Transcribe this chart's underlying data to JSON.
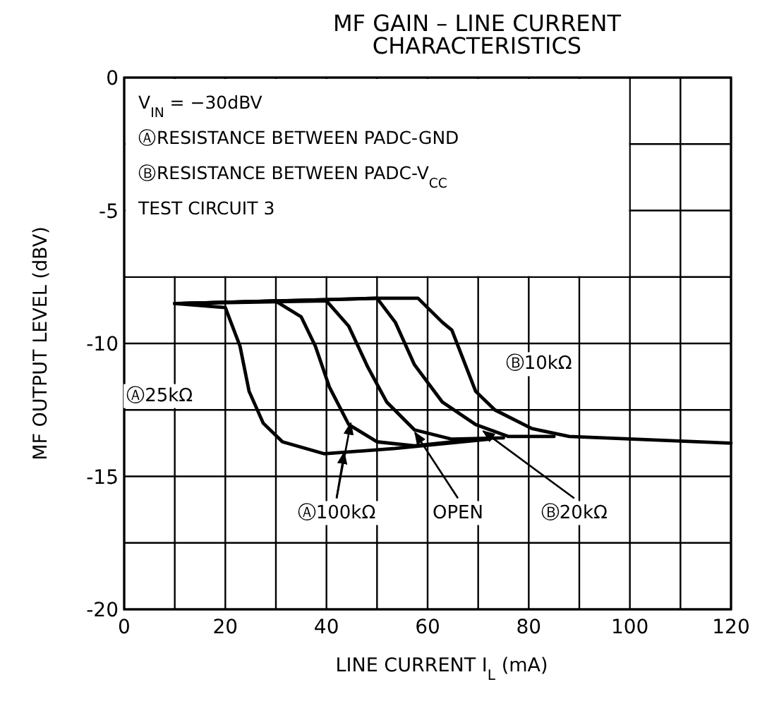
{
  "chart_data": {
    "type": "line",
    "title": "MF GAIN – LINE CURRENT CHARACTERISTICS",
    "xlabel": "LINE CURRENT  I$_{L}$  (mA)",
    "ylabel": "MF OUTPUT LEVEL (dBV)",
    "annotations": [
      "V$_{IN}$ = −30dBV",
      "ⒶRESISTANCE BETWEEN PADC-GND",
      "ⒷRESISTANCE BETWEEN PADC-V$_{CC}$",
      "TEST CIRCUIT 3"
    ],
    "xlim": [
      0,
      120
    ],
    "ylim": [
      -20,
      0
    ],
    "xticks": [
      0,
      {
        "value": 10,
        "label": null
      },
      20,
      {
        "value": 30,
        "label": null
      },
      40,
      {
        "value": 50,
        "label": null
      },
      60,
      {
        "value": 70,
        "label": null
      },
      80,
      {
        "value": 90,
        "label": null
      },
      100,
      {
        "value": 110,
        "label": null
      },
      120
    ],
    "yticks": [
      -20,
      {
        "value": -17.5,
        "label": null
      },
      -15,
      {
        "value": -12.5,
        "label": null
      },
      -10,
      {
        "value": -7.5,
        "label": null
      },
      -5,
      {
        "value": -2.5,
        "label": null
      },
      0
    ],
    "grid": true,
    "legend": false,
    "marker": "none",
    "line_style": "solid",
    "series": [
      {
        "name": "Ⓐ25kΩ",
        "color": "#000000",
        "x": [
          10,
          20,
          22.9,
          24.7,
          27.5,
          31.3,
          39.6,
          53.6,
          72.3
        ],
        "values": [
          -8.5,
          -8.65,
          -10.1,
          -11.8,
          -13.0,
          -13.7,
          -14.15,
          -13.95,
          -13.6
        ]
      },
      {
        "name": "Ⓐ100kΩ",
        "color": "#000000",
        "x": [
          10,
          29.9,
          35,
          37.8,
          40.6,
          44.4,
          50,
          57.4,
          70
        ],
        "values": [
          -8.5,
          -8.4,
          -9.0,
          -10.1,
          -11.65,
          -13.05,
          -13.7,
          -13.85,
          -13.6
        ]
      },
      {
        "name": "OPEN",
        "color": "#000000",
        "x": [
          10,
          40,
          44.4,
          48.2,
          51.9,
          57.4,
          64.8,
          75
        ],
        "values": [
          -8.5,
          -8.4,
          -9.35,
          -10.9,
          -12.2,
          -13.25,
          -13.6,
          -13.55
        ]
      },
      {
        "name": "Ⓑ20kΩ",
        "color": "#000000",
        "x": [
          10,
          50,
          53.6,
          57.4,
          62.9,
          69.5,
          76,
          85
        ],
        "values": [
          -8.5,
          -8.3,
          -9.2,
          -10.8,
          -12.2,
          -13.05,
          -13.5,
          -13.5
        ]
      },
      {
        "name": "Ⓑ10kΩ",
        "color": "#000000",
        "x": [
          10,
          50,
          58.1,
          62.9,
          64.8,
          69.5,
          73.3,
          80.6,
          88,
          120
        ],
        "values": [
          -8.5,
          -8.3,
          -8.3,
          -9.2,
          -9.5,
          -11.8,
          -12.5,
          -13.2,
          -13.5,
          -13.75
        ]
      }
    ]
  }
}
